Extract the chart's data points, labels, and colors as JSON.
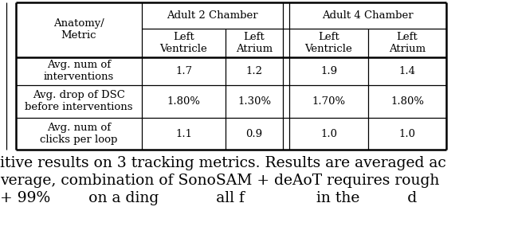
{
  "col_headers_top": [
    "Adult 2 Chamber",
    "Adult 4 Chamber"
  ],
  "col_headers_sub": [
    "Left\nVentricle",
    "Left\nAtrium",
    "Left\nVentricle",
    "Left\nAtrium"
  ],
  "anatomy_header": "Anatomy/\nMetric",
  "rows": [
    [
      "Avg. num of\ninterventions",
      "1.7",
      "1.2",
      "1.9",
      "1.4"
    ],
    [
      "Avg. drop of DSC\nbefore interventions",
      "1.80%",
      "1.30%",
      "1.70%",
      "1.80%"
    ],
    [
      "Avg. num of\nclicks per loop",
      "1.1",
      "0.9",
      "1.0",
      "1.0"
    ]
  ],
  "caption_lines": [
    "itive results on 3 tracking metrics. Results are averaged ac",
    "verage, combination of SonoSAM + deAoT requires rough",
    "+ 99%        on a ding            all f               in the          d"
  ],
  "bg_color": "#ffffff",
  "text_color": "#000000",
  "caption_fontsize": 13.5,
  "table_fontsize": 9.5
}
